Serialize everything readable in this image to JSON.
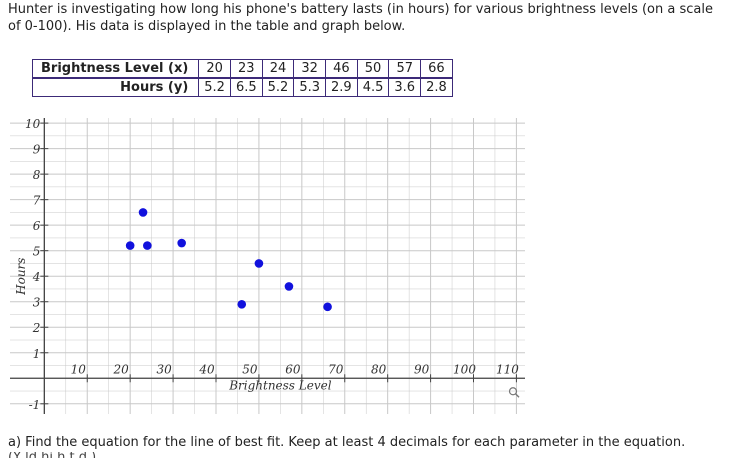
{
  "intro": {
    "line1": "Hunter is investigating how long his phone's battery lasts (in hours) for various brightness levels (on a scale",
    "line2": "of 0-100). His data is displayed in the table and graph below."
  },
  "table": {
    "x_header": "Brightness Level (x)",
    "y_header": "Hours (y)",
    "x_values": [
      "20",
      "23",
      "24",
      "32",
      "46",
      "50",
      "57",
      "66"
    ],
    "y_values": [
      "5.2",
      "6.5",
      "5.2",
      "5.3",
      "2.9",
      "4.5",
      "3.6",
      "2.8"
    ]
  },
  "chart_data": {
    "type": "scatter",
    "xlabel": "Brightness Level",
    "ylabel": "Hours",
    "x": [
      20,
      23,
      24,
      32,
      46,
      50,
      57,
      66
    ],
    "y": [
      5.2,
      6.5,
      5.2,
      5.3,
      2.9,
      4.5,
      3.6,
      2.8
    ],
    "xlim": [
      -8,
      112
    ],
    "ylim": [
      -1.4,
      10.2
    ],
    "x_ticks": [
      "10",
      "20",
      "30",
      "40",
      "50",
      "60",
      "70",
      "80",
      "90",
      "100",
      "110"
    ],
    "y_ticks": [
      "-1",
      "1",
      "2",
      "3",
      "4",
      "5",
      "6",
      "7",
      "8",
      "9",
      "10"
    ],
    "grid": true,
    "point_color": "#1111dd",
    "grid_color": "#c8c8c8",
    "axis_color": "#444444",
    "zoom_icon": "magnifier-icon"
  },
  "question": {
    "text": "a) Find the equation for the line of best fit. Keep at least 4 decimals for each parameter in the equation.",
    "cut_text": "(Y     ld  hi   h   t  d   )"
  }
}
